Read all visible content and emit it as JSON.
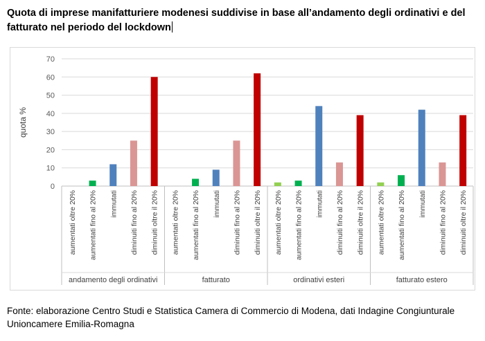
{
  "title": "Quota di imprese manifatturiere modenesi suddivise in base all’andamento degli ordinativi e del fatturato nel periodo del lockdown",
  "source_text": "Fonte: elaborazione Centro Studi e Statistica Camera di Commercio di Modena, dati Indagine Congiunturale Unioncamere Emilia-Romagna",
  "chart_data": {
    "type": "bar",
    "ylabel": "quota %",
    "ylim": [
      0,
      70
    ],
    "yticks": [
      0,
      10,
      20,
      30,
      40,
      50,
      60,
      70
    ],
    "grid": true,
    "legend": "none",
    "groups": [
      {
        "name": "andamento degli ordinativi",
        "bars": [
          {
            "label": "aumentati oltre 20%",
            "value": 0,
            "color": "#92d050"
          },
          {
            "label": "aumentati fino al 20%",
            "value": 3,
            "color": "#00b050"
          },
          {
            "label": "immutati",
            "value": 12,
            "color": "#4f81bd"
          },
          {
            "label": "diminuiti fino al 20%",
            "value": 25,
            "color": "#da9694"
          },
          {
            "label": "diminuiti oltre il 20%",
            "value": 60,
            "color": "#c00000"
          }
        ]
      },
      {
        "name": "fatturato",
        "bars": [
          {
            "label": "aumentati oltre 20%",
            "value": 0,
            "color": "#92d050"
          },
          {
            "label": "aumentati fino al 20%",
            "value": 4,
            "color": "#00b050"
          },
          {
            "label": "immutati",
            "value": 9,
            "color": "#4f81bd"
          },
          {
            "label": "diminuiti fino al 20%",
            "value": 25,
            "color": "#da9694"
          },
          {
            "label": "diminuiti oltre il 20%",
            "value": 62,
            "color": "#c00000"
          }
        ]
      },
      {
        "name": "ordinativi esteri",
        "bars": [
          {
            "label": "aumentati oltre 20%",
            "value": 2,
            "color": "#92d050"
          },
          {
            "label": "aumentati fino al 20%",
            "value": 3,
            "color": "#00b050"
          },
          {
            "label": "immutati",
            "value": 44,
            "color": "#4f81bd"
          },
          {
            "label": "diminuiti fino al 20%",
            "value": 13,
            "color": "#da9694"
          },
          {
            "label": "diminuiti oltre il 20%",
            "value": 39,
            "color": "#c00000"
          }
        ]
      },
      {
        "name": "fatturato estero",
        "bars": [
          {
            "label": "aumentati oltre 20%",
            "value": 2,
            "color": "#92d050"
          },
          {
            "label": "aumentati fino al 20%",
            "value": 6,
            "color": "#00b050"
          },
          {
            "label": "immutati",
            "value": 42,
            "color": "#4f81bd"
          },
          {
            "label": "diminuiti fino al 20%",
            "value": 13,
            "color": "#da9694"
          },
          {
            "label": "diminuiti oltre il 20%",
            "value": 39,
            "color": "#c00000"
          }
        ]
      }
    ]
  }
}
